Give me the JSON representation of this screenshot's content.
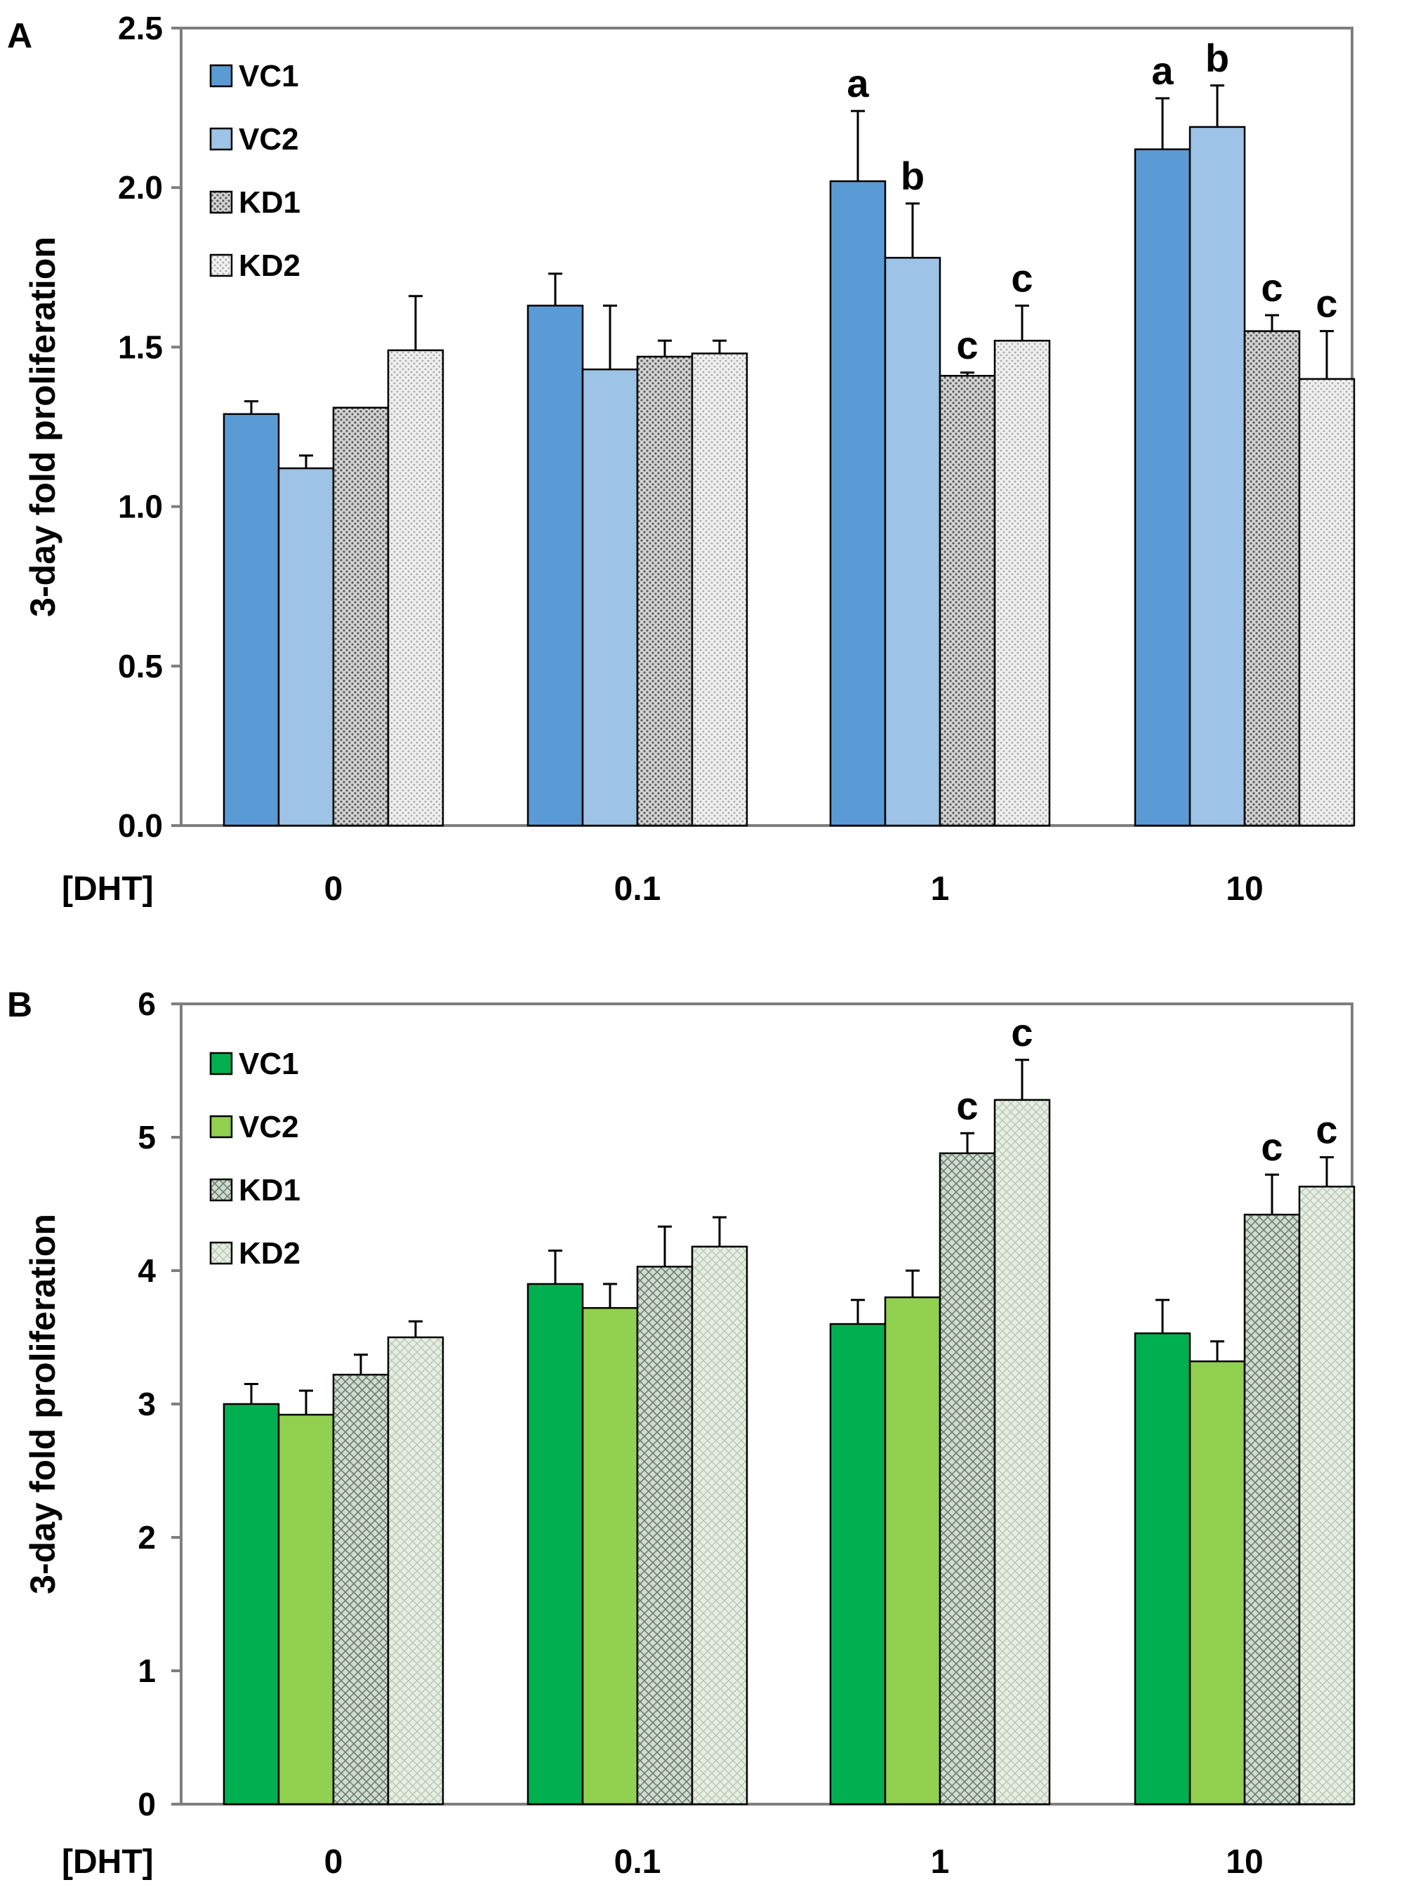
{
  "chart_data": [
    {
      "type": "bar",
      "panel": "A",
      "ylabel": "3-day fold proliferation",
      "xlabel": "[DHT]",
      "categories": [
        "0",
        "0.1",
        "1",
        "10"
      ],
      "ylim": [
        0,
        2.5
      ],
      "yticks": [
        "0.0",
        "0.5",
        "1.0",
        "1.5",
        "2.0",
        "2.5"
      ],
      "legend_position": "top-left",
      "series": [
        {
          "name": "VC1",
          "color": "#5b9bd5",
          "pattern": "solid",
          "values": [
            1.29,
            1.63,
            2.02,
            2.12
          ],
          "errors": [
            0.04,
            0.1,
            0.22,
            0.16
          ]
        },
        {
          "name": "VC2",
          "color": "#9dc3e6",
          "pattern": "solid",
          "values": [
            1.12,
            1.43,
            1.78,
            2.19
          ],
          "errors": [
            0.04,
            0.2,
            0.17,
            0.13
          ]
        },
        {
          "name": "KD1",
          "color": "#bfbfbf",
          "pattern": "dense-dots",
          "values": [
            1.31,
            1.47,
            1.41,
            1.55
          ],
          "errors": [
            0.0,
            0.05,
            0.01,
            0.05
          ]
        },
        {
          "name": "KD2",
          "color": "#e0e0e0",
          "pattern": "light-dots",
          "values": [
            1.49,
            1.48,
            1.52,
            1.4
          ],
          "errors": [
            0.17,
            0.04,
            0.11,
            0.15
          ]
        }
      ],
      "annotations": [
        {
          "category": 2,
          "series": 0,
          "text": "a"
        },
        {
          "category": 2,
          "series": 1,
          "text": "b"
        },
        {
          "category": 2,
          "series": 2,
          "text": "c"
        },
        {
          "category": 2,
          "series": 3,
          "text": "c"
        },
        {
          "category": 3,
          "series": 0,
          "text": "a"
        },
        {
          "category": 3,
          "series": 1,
          "text": "b"
        },
        {
          "category": 3,
          "series": 2,
          "text": "c"
        },
        {
          "category": 3,
          "series": 3,
          "text": "c"
        }
      ]
    },
    {
      "type": "bar",
      "panel": "B",
      "ylabel": "3-day fold proliferation",
      "xlabel": "[DHT]",
      "categories": [
        "0",
        "0.1",
        "1",
        "10"
      ],
      "ylim": [
        0,
        6
      ],
      "yticks": [
        "0",
        "1",
        "2",
        "3",
        "4",
        "5",
        "6"
      ],
      "legend_position": "top-left",
      "series": [
        {
          "name": "VC1",
          "color": "#00b050",
          "pattern": "solid",
          "values": [
            3.0,
            3.9,
            3.6,
            3.53
          ],
          "errors": [
            0.15,
            0.25,
            0.18,
            0.25
          ]
        },
        {
          "name": "VC2",
          "color": "#92d050",
          "pattern": "solid",
          "values": [
            2.92,
            3.72,
            3.8,
            3.32
          ],
          "errors": [
            0.18,
            0.18,
            0.2,
            0.15
          ]
        },
        {
          "name": "KD1",
          "color": "#b8c9b8",
          "pattern": "crosshatch",
          "values": [
            3.22,
            4.03,
            4.88,
            4.42
          ],
          "errors": [
            0.15,
            0.3,
            0.15,
            0.3
          ]
        },
        {
          "name": "KD2",
          "color": "#dfe9dc",
          "pattern": "light-crosshatch",
          "values": [
            3.5,
            4.18,
            5.28,
            4.63
          ],
          "errors": [
            0.12,
            0.22,
            0.3,
            0.22
          ]
        }
      ],
      "annotations": [
        {
          "category": 2,
          "series": 2,
          "text": "c"
        },
        {
          "category": 2,
          "series": 3,
          "text": "c"
        },
        {
          "category": 3,
          "series": 2,
          "text": "c"
        },
        {
          "category": 3,
          "series": 3,
          "text": "c"
        }
      ]
    }
  ]
}
